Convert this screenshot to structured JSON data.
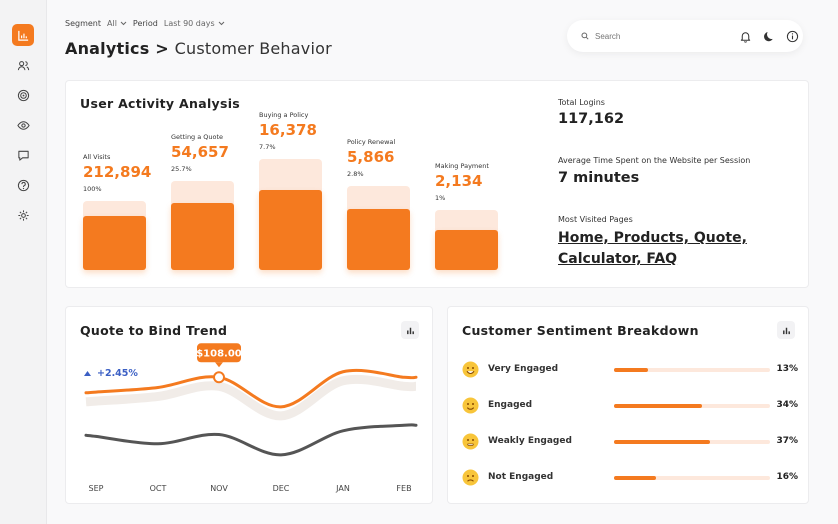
{
  "filters": {
    "segment_label": "Segment",
    "segment_value": "All",
    "period_label": "Period",
    "period_value": "Last 90 days"
  },
  "header": {
    "title": "Analytics",
    "separator": ">",
    "subtitle": "Customer Behavior",
    "search_placeholder": "Search"
  },
  "sidebar": {
    "items": [
      "analytics-icon",
      "users-icon",
      "target-icon",
      "eye-icon",
      "chat-icon",
      "help-icon",
      "gear-icon"
    ]
  },
  "activity": {
    "title": "User Activity Analysis",
    "stages": [
      {
        "label": "All Visits",
        "value": "212,894",
        "pct": "100%",
        "fill": 0.78
      },
      {
        "label": "Getting a Quote",
        "value": "54,657",
        "pct": "25.7%",
        "fill": 0.75
      },
      {
        "label": "Buying a Policy",
        "value": "16,378",
        "pct": "7.7%",
        "fill": 0.72
      },
      {
        "label": "Policy Renewal",
        "value": "5,866",
        "pct": "2.8%",
        "fill": 0.73
      },
      {
        "label": "Making Payment",
        "value": "2,134",
        "pct": "1%",
        "fill": 0.66
      }
    ],
    "stats": {
      "total_logins_label": "Total Logins",
      "total_logins_value": "117,162",
      "avg_time_label": "Average Time Spent on the Website per Session",
      "avg_time_value": "7 minutes",
      "pages_label": "Most Visited Pages",
      "pages_value": "Home, Products, Quote, Calculator, FAQ"
    }
  },
  "trend": {
    "title": "Quote to Bind Trend",
    "change": "+2.45%",
    "tooltip": "$108.00",
    "months": [
      "SEP",
      "OCT",
      "NOV",
      "DEC",
      "JAN",
      "FEB"
    ]
  },
  "chart_data": {
    "type": "line",
    "title": "Quote to Bind Trend",
    "categories": [
      "SEP",
      "OCT",
      "NOV",
      "DEC",
      "JAN",
      "FEB"
    ],
    "highlight": {
      "category": "NOV",
      "value": 108.0,
      "label": "$108.00"
    },
    "series": [
      {
        "name": "current",
        "color": "#f47a1f",
        "values": [
          92,
          97,
          108,
          76,
          114,
          108
        ]
      },
      {
        "name": "previous",
        "color": "#555555",
        "values": [
          44,
          36,
          46,
          24,
          50,
          56
        ]
      }
    ],
    "ylim": [
      0,
      130
    ]
  },
  "sentiment": {
    "title": "Customer Sentiment Breakdown",
    "rows": [
      {
        "label": "Very Engaged",
        "pct": "13%",
        "value": 13
      },
      {
        "label": "Engaged",
        "pct": "34%",
        "value": 34
      },
      {
        "label": "Weakly Engaged",
        "pct": "37%",
        "value": 37
      },
      {
        "label": "Not Engaged",
        "pct": "16%",
        "value": 16
      }
    ]
  },
  "colors": {
    "accent": "#f47a1f",
    "accent_light": "#fde8dc",
    "dark_line": "#555555"
  }
}
